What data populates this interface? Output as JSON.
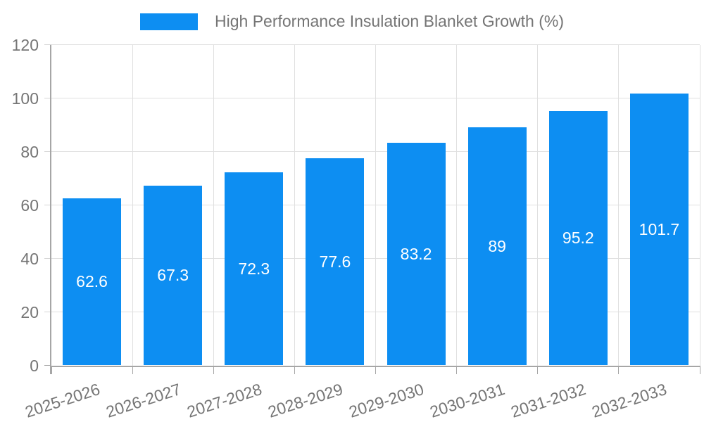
{
  "legend": {
    "items": [
      {
        "label": "High Performance Insulation Blanket Growth (%)",
        "color": "#0d8ef2"
      }
    ]
  },
  "chart_data": {
    "type": "bar",
    "title": "High Performance Insulation Blanket Growth (%)",
    "categories": [
      "2025-2026",
      "2026-2027",
      "2027-2028",
      "2028-2029",
      "2029-2030",
      "2030-2031",
      "2031-2032",
      "2032-2033"
    ],
    "series": [
      {
        "name": "High Performance Insulation Blanket Growth (%)",
        "color": "#0d8ef2",
        "values": [
          62.6,
          67.3,
          72.3,
          77.6,
          83.2,
          89,
          95.2,
          101.7
        ],
        "data_labels": [
          "62.6",
          "67.3",
          "72.3",
          "77.6",
          "83.2",
          "89",
          "95.2",
          "101.7"
        ]
      }
    ],
    "xlabel": "",
    "ylabel": "",
    "ylim": [
      0,
      120
    ],
    "yticks": [
      0,
      20,
      40,
      60,
      80,
      100,
      120
    ],
    "grid": true,
    "legend_position": "top-center",
    "bar_label_position": "inside-center",
    "bar_label_color": "#ffffff",
    "axis_text_color": "#757575",
    "gridline_color": "#e0e0e0",
    "axis_line_color": "#a6a6a6",
    "x_label_rotation_deg": -18
  }
}
